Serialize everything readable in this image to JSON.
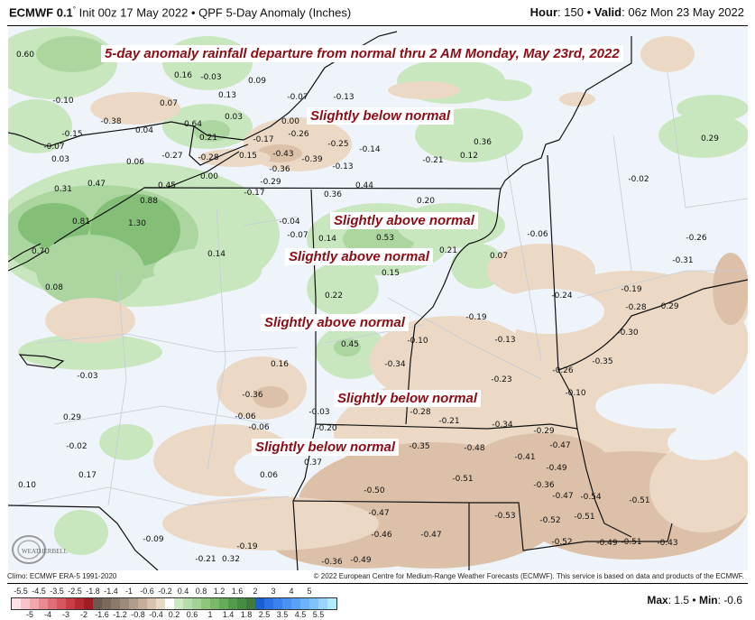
{
  "header": {
    "model": "ECMWF 0.1",
    "degree": "°",
    "init": "Init 00z 17 May 2022",
    "product": "QPF 5-Day Anomaly (Inches)",
    "hour_label": "Hour",
    "hour": "150",
    "valid_label": "Valid",
    "valid": "06z Mon 23 May 2022",
    "sep": "•"
  },
  "annotations": {
    "title": "5-day anomaly rainfall departure from normal thru 2 AM Monday, May 23rd, 2022",
    "labels": [
      "Slightly below normal",
      "Slightly above normal",
      "Slightly above normal",
      "Slightly above normal",
      "Slightly below normal",
      "Slightly below normal"
    ]
  },
  "map_values": [
    "0.60",
    "0.16",
    "-0.03",
    "0.09",
    "-0.10",
    "0.07",
    "0.13",
    "-0.07",
    "-0.13",
    "-0.38",
    "0.64",
    "0.03",
    "0.00",
    "-0.15",
    "0.04",
    "0.21",
    "-0.17",
    "-0.26",
    "-0.25",
    "-0.14",
    "0.36",
    "0.12",
    "-0.21",
    "0.29",
    "-0.07",
    "0.03",
    "-0.27",
    "-0.28",
    "0.15",
    "-0.43",
    "-0.39",
    "-0.13",
    "0.06",
    "-0.36",
    "-0.29",
    "0.00",
    "0.31",
    "0.47",
    "0.45",
    "0.88",
    "-0.17",
    "0.44",
    "0.36",
    "0.20",
    "-0.02",
    "0.81",
    "1.30",
    "-0.04",
    "-0.07",
    "0.53",
    "0.14",
    "0.21",
    "-0.06",
    "-0.26",
    "0.70",
    "0.14",
    "0.07",
    "-0.31",
    "0.15",
    "0.08",
    "0.22",
    "-0.24",
    "-0.19",
    "-0.28",
    "-0.29",
    "0.45",
    "-0.19",
    "-0.10",
    "-0.13",
    "-0.30",
    "-0.03",
    "0.16",
    "-0.34",
    "-0.35",
    "-0.26",
    "-0.23",
    "-0.10",
    "-0.36",
    "0.29",
    "-0.06",
    "-0.06",
    "-0.03",
    "-0.28",
    "-0.21",
    "-0.34",
    "-0.20",
    "-0.29",
    "-0.02",
    "-0.35",
    "-0.48",
    "-0.47",
    "-0.41",
    "0.17",
    "0.06",
    "0.37",
    "-0.49",
    "-0.51",
    "-0.36",
    "-0.47",
    "-0.54",
    "-0.51",
    "0.10",
    "-0.50",
    "-0.47",
    "-0.53",
    "-0.52",
    "-0.51",
    "-0.46",
    "-0.47",
    "-0.52",
    "-0.49",
    "-0.51",
    "-0.43",
    "-0.09",
    "-0.19",
    "-0.21",
    "0.32",
    "-0.36",
    "-0.49"
  ],
  "logo": "WeatherBELL",
  "footer": {
    "climo": "Climo: ECMWF ERA-5 1991-2020",
    "copyright": "© 2022 European Centre for Medium-Range Weather Forecasts (ECMWF). This service is based on data and products of the ECMWF."
  },
  "colorbar": {
    "ticks": [
      "-5.5",
      "-5",
      "-4.5",
      "-4",
      "-3.5",
      "-3",
      "-2.5",
      "-2",
      "-1.8",
      "-1.6",
      "-1.4",
      "-1.2",
      "-1",
      "-0.8",
      "-0.6",
      "-0.4",
      "-0.2",
      "0.2",
      "0.4",
      "0.6",
      "0.8",
      "1",
      "1.2",
      "1.4",
      "1.6",
      "1.8",
      "2",
      "2.5",
      "3",
      "3.5",
      "4",
      "4.5",
      "5",
      "5.5"
    ],
    "colors": [
      "#ffe2e5",
      "#f9c4c9",
      "#f2a6ad",
      "#e98a91",
      "#e06e76",
      "#d6565f",
      "#ca3d47",
      "#b62a33",
      "#9e1c22",
      "#6b5a50",
      "#7a6a5e",
      "#8a7a6c",
      "#9c8a7a",
      "#b09c8a",
      "#c4ae9a",
      "#d8c2ac",
      "#e9d9c7",
      "#ffffff",
      "#cbe9c2",
      "#b6ddab",
      "#a2d294",
      "#8ec67e",
      "#79b96a",
      "#65ab59",
      "#559b4d",
      "#488b44",
      "#3f7b3c",
      "#1b5fd6",
      "#2b72e6",
      "#3b82ee",
      "#4b92f3",
      "#5ba2f7",
      "#6db2fa",
      "#82c2fc",
      "#9ad4fd",
      "#b2ecfc"
    ],
    "max_label": "Max",
    "max": "1.5",
    "min_label": "Min",
    "min": "-0.6"
  }
}
